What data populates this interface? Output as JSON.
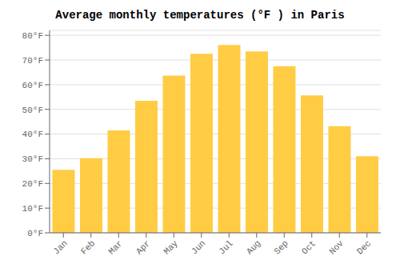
{
  "chart_data": {
    "type": "bar",
    "title": "Average monthly temperatures (°F ) in Paris",
    "categories": [
      "Jan",
      "Feb",
      "Mar",
      "Apr",
      "May",
      "Jun",
      "Jul",
      "Aug",
      "Sep",
      "Oct",
      "Nov",
      "Dec"
    ],
    "values": [
      25.5,
      30.2,
      41.5,
      53.5,
      63.7,
      72.5,
      76.1,
      73.5,
      67.5,
      55.7,
      43.2,
      31.0
    ],
    "color": "#FFCC44",
    "ylim": [
      0,
      82
    ],
    "yticks": [
      {
        "value": 0,
        "label": "0°F"
      },
      {
        "value": 10,
        "label": "10°F"
      },
      {
        "value": 20,
        "label": "20°F"
      },
      {
        "value": 30,
        "label": "30°F"
      },
      {
        "value": 40,
        "label": "40°F"
      },
      {
        "value": 50,
        "label": "50°F"
      },
      {
        "value": 60,
        "label": "60°F"
      },
      {
        "value": 70,
        "label": "70°F"
      },
      {
        "value": 80,
        "label": "80°F"
      }
    ],
    "grid": true
  }
}
